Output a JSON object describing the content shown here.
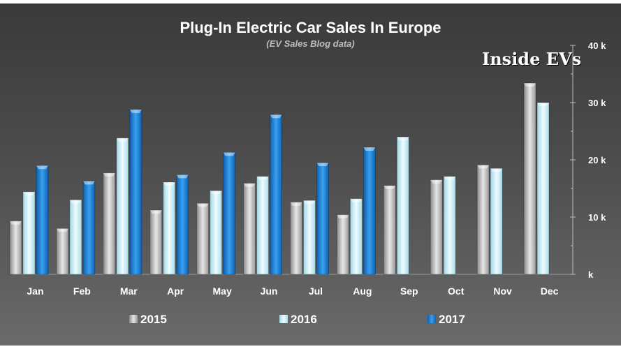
{
  "chart_data": {
    "type": "bar",
    "title": "Plug-In Electric Car Sales In Europe",
    "subtitle": "(EV Sales Blog data)",
    "watermark": "Inside EVs",
    "categories": [
      "Jan",
      "Feb",
      "Mar",
      "Apr",
      "May",
      "Jun",
      "Jul",
      "Aug",
      "Sep",
      "Oct",
      "Nov",
      "Dec"
    ],
    "series": [
      {
        "name": "2015",
        "color": "#b8b8b8",
        "values": [
          9300,
          8000,
          17700,
          11200,
          12400,
          15900,
          12600,
          10400,
          15500,
          16500,
          19100,
          33400
        ]
      },
      {
        "name": "2016",
        "color": "#c8eef5",
        "values": [
          14400,
          13000,
          23800,
          16100,
          14600,
          17100,
          12900,
          13200,
          24000,
          17100,
          18500,
          30000
        ]
      },
      {
        "name": "2017",
        "color": "#1f7fd4",
        "values": [
          19000,
          16300,
          28800,
          17400,
          21300,
          27900,
          19500,
          22200,
          null,
          null,
          null,
          null
        ]
      }
    ],
    "ylim": [
      0,
      40000
    ],
    "yticks": [
      0,
      10000,
      20000,
      30000,
      40000
    ],
    "ytick_labels": [
      "k",
      "10 k",
      "20 k",
      "30 k",
      "40 k"
    ],
    "y_axis_side": "right",
    "grid": false,
    "legend": "bottom"
  }
}
